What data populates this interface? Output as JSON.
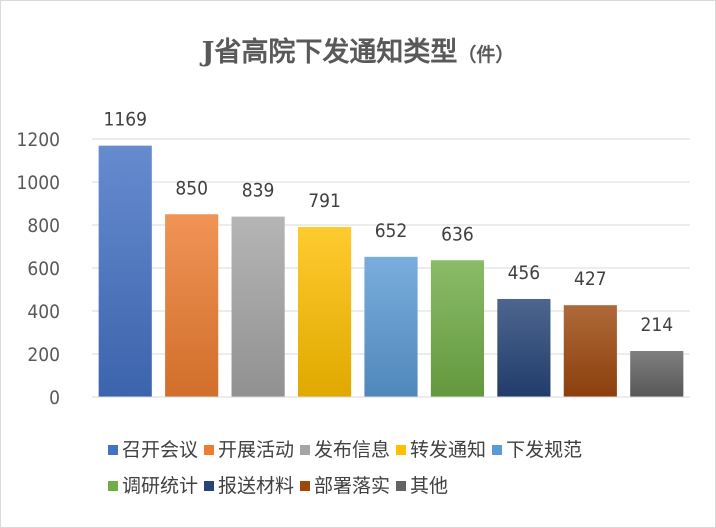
{
  "chart_data": {
    "type": "bar",
    "title": "J省高院下发通知类型",
    "title_unit": "（件）",
    "categories": [
      "召开会议",
      "开展活动",
      "发布信息",
      "转发通知",
      "下发规范",
      "调研统计",
      "报送材料",
      "部署落实",
      "其他"
    ],
    "values": [
      1169,
      850,
      839,
      791,
      652,
      636,
      456,
      427,
      214
    ],
    "colors": [
      "#4472c4",
      "#ed7d31",
      "#a5a5a5",
      "#ffc000",
      "#5b9bd5",
      "#70ad47",
      "#264478",
      "#9e480e",
      "#636363"
    ],
    "ylim": [
      0,
      1200
    ],
    "yticks": [
      0,
      200,
      400,
      600,
      800,
      1000,
      1200
    ],
    "grid": true,
    "legend": "bottom"
  }
}
